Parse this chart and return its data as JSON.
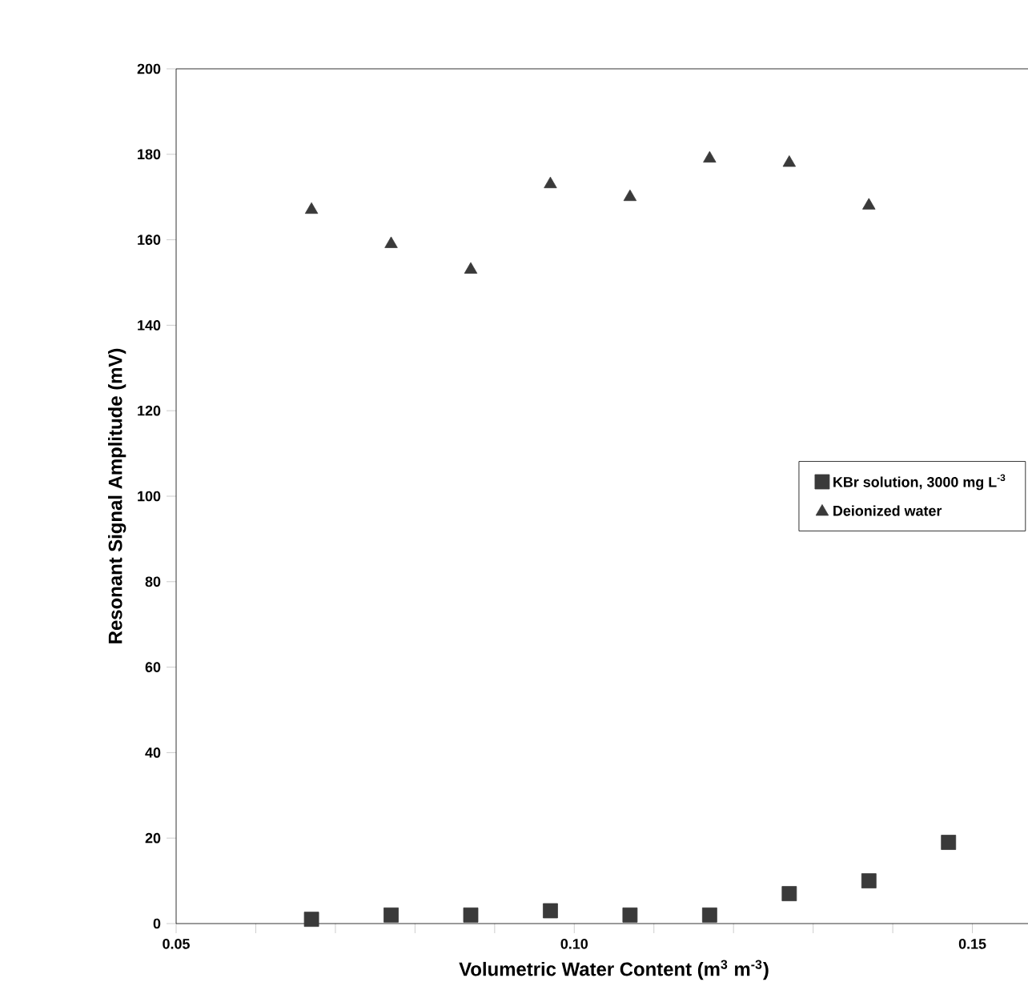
{
  "chart_data": {
    "type": "scatter",
    "xlabel": "Volumetric Water Content (m$^{3}$ m$^{-3}$)",
    "ylabel": "Resonant Signal Amplitude (mV)",
    "series": [
      {
        "name": "KBr solution, 3000 mg L$^{-3}$",
        "color": "#3a3a3a",
        "marker": "square",
        "x": [
          0.067,
          0.077,
          0.087,
          0.097,
          0.107,
          0.117,
          0.127,
          0.137,
          0.147
        ],
        "values": [
          1,
          2,
          2,
          3,
          2,
          2,
          7,
          10,
          19
        ]
      },
      {
        "name": "Deionized water",
        "color": "#3a3a3a",
        "marker": "triangle",
        "x": [
          0.067,
          0.077,
          0.087,
          0.097,
          0.107,
          0.117,
          0.127,
          0.137
        ],
        "values": [
          167,
          159,
          153,
          173,
          170,
          179,
          178,
          168
        ]
      }
    ],
    "xlim": [
      0.05,
      0.16
    ],
    "xticks": [
      0.05,
      {
        "value": 0.06,
        "label": null
      },
      {
        "value": 0.07,
        "label": null
      },
      {
        "value": 0.08,
        "label": null
      },
      {
        "value": 0.09,
        "label": null
      },
      {
        "value": 0.1,
        "label": "0.10"
      },
      {
        "value": 0.11,
        "label": null
      },
      {
        "value": 0.12,
        "label": null
      },
      {
        "value": 0.13,
        "label": null
      },
      {
        "value": 0.14,
        "label": null
      },
      0.15
    ],
    "ylim": [
      0,
      200
    ],
    "yticks": [
      0,
      20,
      40,
      60,
      80,
      100,
      120,
      140,
      160,
      180,
      200
    ],
    "legend": "right"
  }
}
